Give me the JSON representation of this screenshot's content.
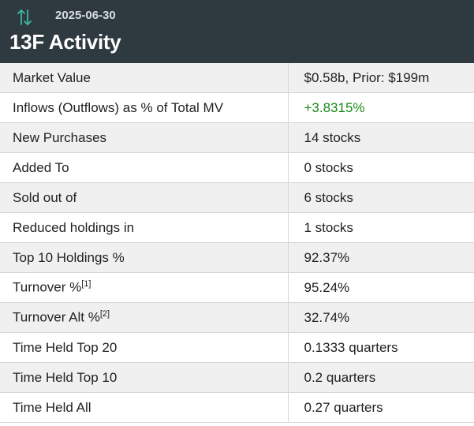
{
  "header": {
    "date": "2025-06-30",
    "title": "13F Activity",
    "icon": "up-down-arrows-icon",
    "icon_color": "#3fb8a0",
    "background": "#2e3a40"
  },
  "rows": [
    {
      "label": "Market Value",
      "value": "$0.58b, Prior: $199m"
    },
    {
      "label": "Inflows (Outflows) as % of Total MV",
      "value": "+3.8315%"
    },
    {
      "label": "New Purchases",
      "value": "14 stocks"
    },
    {
      "label": "Added To",
      "value": "0 stocks"
    },
    {
      "label": "Sold out of",
      "value": "6 stocks"
    },
    {
      "label": "Reduced holdings in",
      "value": "1 stocks"
    },
    {
      "label": "Top 10 Holdings %",
      "value": "92.37%"
    },
    {
      "label": "Turnover %",
      "footnote": "[1]",
      "value": "95.24%"
    },
    {
      "label": "Turnover Alt %",
      "footnote": "[2]",
      "value": "32.74%"
    },
    {
      "label": "Time Held Top 20",
      "value": "0.1333 quarters"
    },
    {
      "label": "Time Held Top 10",
      "value": "0.2 quarters"
    },
    {
      "label": "Time Held All",
      "value": "0.27 quarters"
    }
  ],
  "colors": {
    "positive": "#1a8a1a",
    "row_alt": "#f0f0f0"
  }
}
